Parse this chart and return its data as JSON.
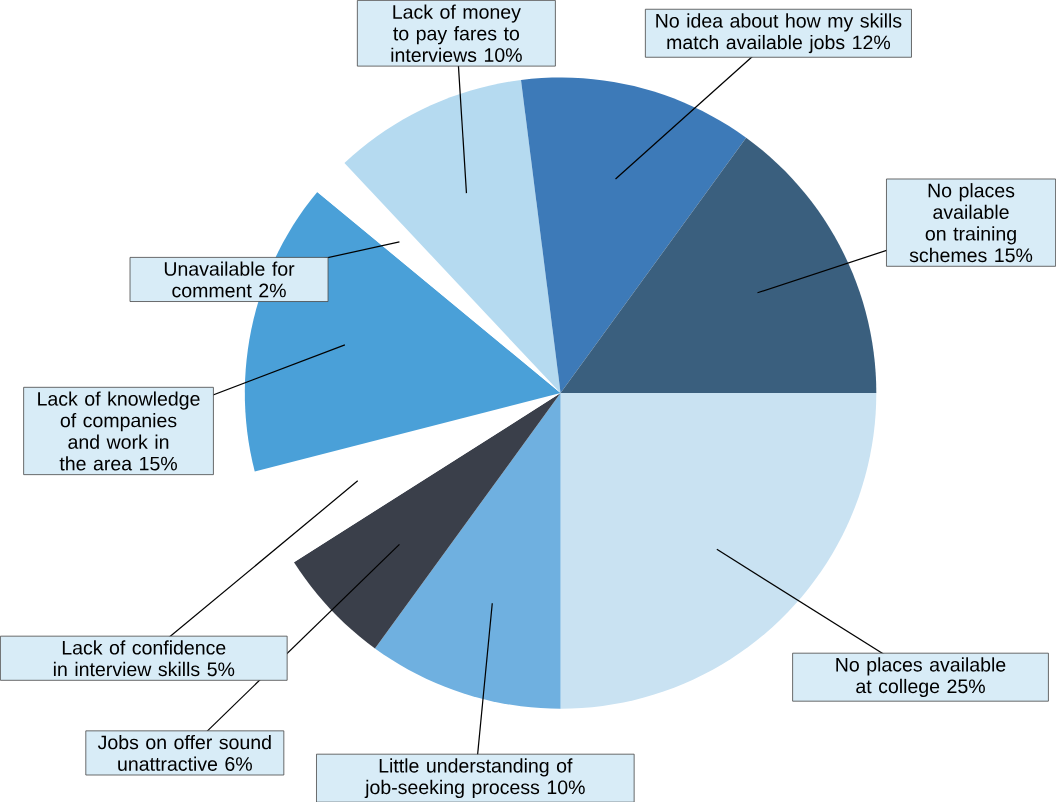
{
  "chart_data": {
    "type": "pie",
    "categories": [
      "No places available at college",
      "Little understanding of job-seeking process",
      "Jobs on offer sound unattractive",
      "Lack of confidence in interview skills",
      "Lack of knowledge of companies and work in the area",
      "Unavailable for comment",
      "Lack of money to pay fares to interviews",
      "No idea about how my skills match available jobs",
      "No places available on training schemes"
    ],
    "values": [
      25,
      10,
      6,
      5,
      15,
      2,
      10,
      12,
      15
    ],
    "value_labels": [
      "25%",
      "10%",
      "6%",
      "5%",
      "15%",
      "2%",
      "10%",
      "12%",
      "15%"
    ],
    "colors": [
      "#c9e2f2",
      "#6fb0e0",
      "#3a3f4a",
      "#ffffff",
      "#4aa0d8",
      "#ffffff",
      "#b5daf0",
      "#3d7ab8",
      "#3a5f7e"
    ]
  }
}
